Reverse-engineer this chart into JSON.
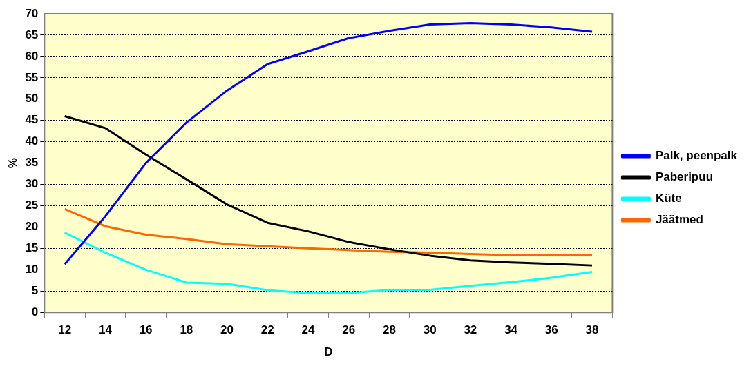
{
  "chart_data": {
    "type": "line",
    "xlabel": "D",
    "ylabel": "%",
    "categories": [
      "12",
      "14",
      "16",
      "18",
      "20",
      "22",
      "24",
      "26",
      "28",
      "30",
      "32",
      "34",
      "36",
      "38"
    ],
    "series": [
      {
        "name": "Palk, peenpalk",
        "color": "#0000ff",
        "values": [
          11.3,
          22.5,
          35,
          44.5,
          52,
          58.2,
          61.2,
          64.3,
          66,
          67.5,
          67.8,
          67.5,
          66.8,
          65.8
        ]
      },
      {
        "name": "Paberipuu",
        "color": "#000000",
        "values": [
          46,
          43.2,
          37,
          31.2,
          25.3,
          21,
          19,
          16.5,
          14.8,
          13.3,
          12.2,
          11.7,
          11.4,
          11
        ]
      },
      {
        "name": "Küte",
        "color": "#00ffff",
        "values": [
          18.7,
          14,
          10,
          7,
          6.7,
          5.2,
          4.5,
          4.5,
          5.3,
          5.3,
          6.2,
          7.1,
          8.1,
          9.5
        ]
      },
      {
        "name": "Jäätmed",
        "color": "#ff6600",
        "values": [
          24.2,
          20.2,
          18.2,
          17.2,
          16,
          15.5,
          15,
          14.6,
          14.2,
          14,
          13.7,
          13.4,
          13.4,
          13.4
        ]
      }
    ],
    "ylim": [
      0,
      70
    ],
    "yticks": [
      0,
      5,
      10,
      15,
      20,
      25,
      30,
      35,
      40,
      45,
      50,
      55,
      60,
      65,
      70
    ],
    "grid": "y",
    "legend": "right",
    "marker": "none",
    "line_style": "solid"
  }
}
